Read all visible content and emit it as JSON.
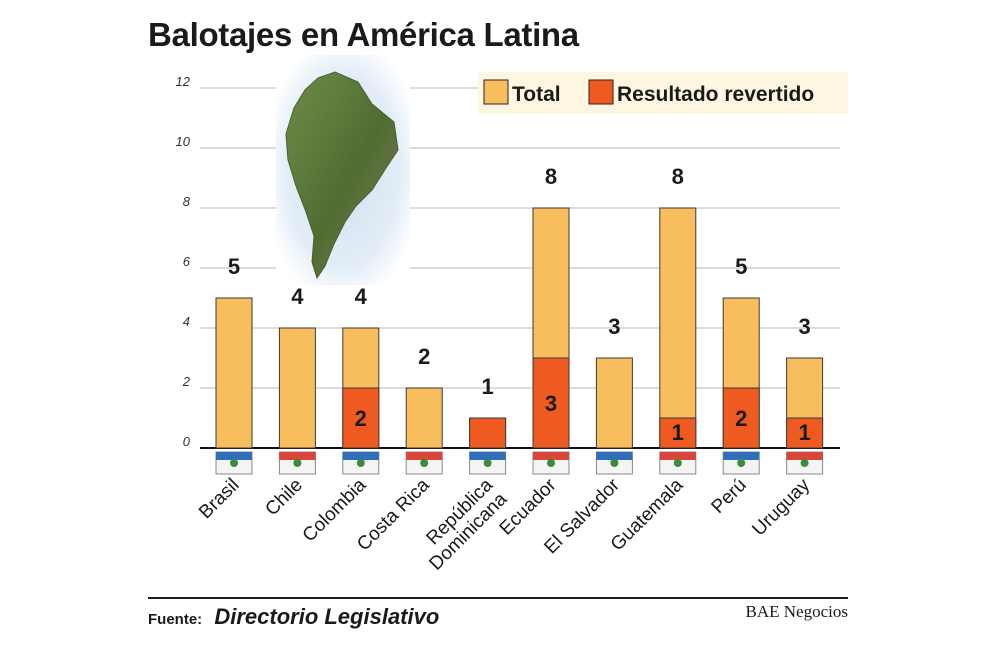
{
  "title": "Balotajes en América Latina",
  "chart_data": {
    "type": "bar",
    "categories": [
      "Brasil",
      "Chile",
      "Colombia",
      "Costa Rica",
      "República Dominicana",
      "Ecuador",
      "El Salvador",
      "Guatemala",
      "Perú",
      "Uruguay"
    ],
    "series": [
      {
        "name": "Total",
        "values": [
          5,
          4,
          4,
          2,
          1,
          8,
          3,
          8,
          5,
          3
        ],
        "color": "#f8be5e"
      },
      {
        "name": "Resultado revertido",
        "values": [
          0,
          0,
          2,
          0,
          1,
          3,
          0,
          1,
          2,
          1
        ],
        "color": "#ee5a1f"
      }
    ],
    "total_labels": [
      "5",
      "4",
      "4",
      "2",
      "1",
      "8",
      "3",
      "8",
      "5",
      "3"
    ],
    "reversed_labels": [
      "",
      "",
      "2",
      "",
      "",
      "3",
      "",
      "1",
      "2",
      "1"
    ],
    "yticks": [
      "0",
      "2",
      "4",
      "6",
      "8",
      "10",
      "12"
    ],
    "ylim": [
      0,
      12
    ],
    "legend_position": "top-right",
    "grid": true
  },
  "footer": {
    "source_label": "Fuente:",
    "source_value": "Directorio Legislativo",
    "brand": "BAE Negocios"
  }
}
